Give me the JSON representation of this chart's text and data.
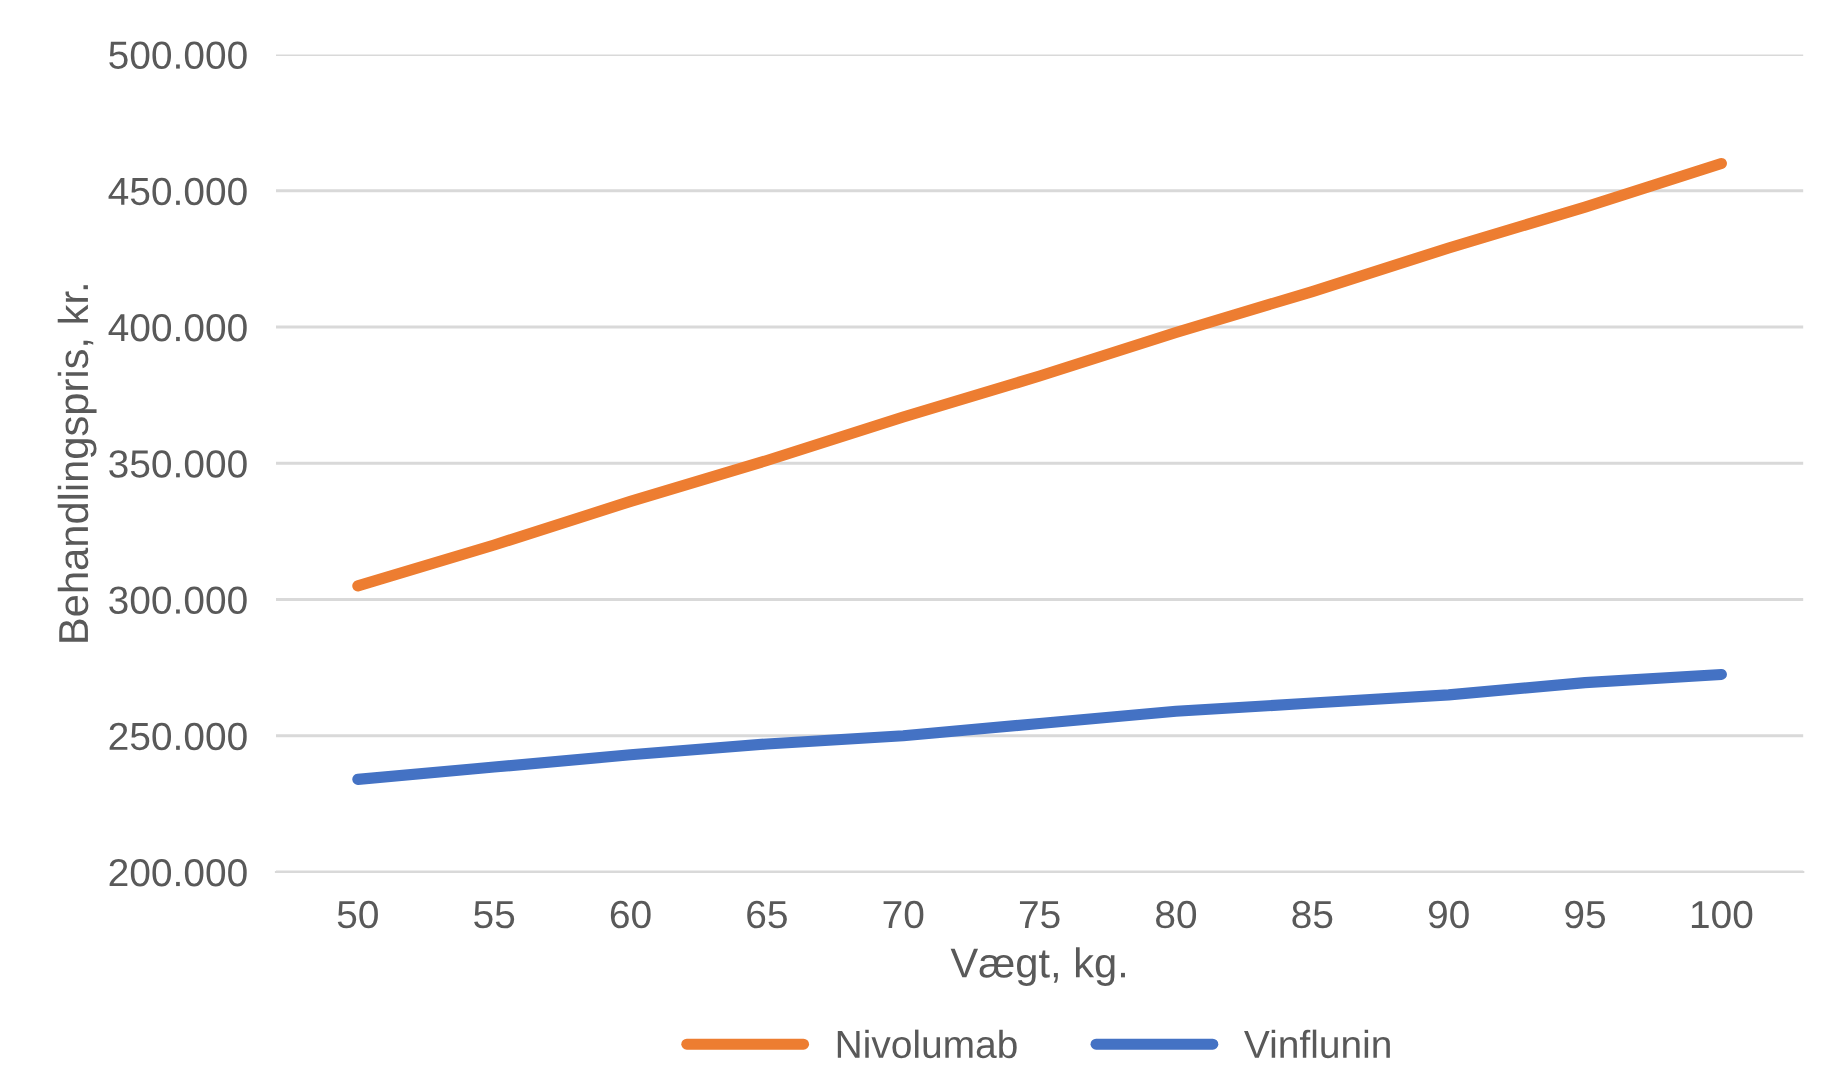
{
  "chart_data": {
    "type": "line",
    "xlabel": "Vægt, kg.",
    "ylabel": "Behandlingspris, kr.",
    "categories": [
      "50",
      "55",
      "60",
      "65",
      "70",
      "75",
      "80",
      "85",
      "90",
      "95",
      "100"
    ],
    "series": [
      {
        "name": "Nivolumab",
        "color": "#ed7d31",
        "values": [
          305000,
          320000,
          336000,
          351000,
          367000,
          382000,
          398000,
          413000,
          429000,
          444000,
          460000
        ]
      },
      {
        "name": "Vinflunin",
        "color": "#4472c4",
        "values": [
          234000,
          238500,
          243000,
          247000,
          250000,
          254500,
          259000,
          262000,
          265000,
          269500,
          272500
        ]
      }
    ],
    "ylim": [
      200000,
      500000
    ],
    "yticks": [
      {
        "value": 200000,
        "label": "200.000"
      },
      {
        "value": 250000,
        "label": "250.000"
      },
      {
        "value": 300000,
        "label": "300.000"
      },
      {
        "value": 350000,
        "label": "350.000"
      },
      {
        "value": 400000,
        "label": "400.000"
      },
      {
        "value": 450000,
        "label": "450.000"
      },
      {
        "value": 500000,
        "label": "500.000"
      }
    ],
    "grid": "y",
    "legend": "bottom",
    "marker": "none",
    "line_style": "solid"
  }
}
